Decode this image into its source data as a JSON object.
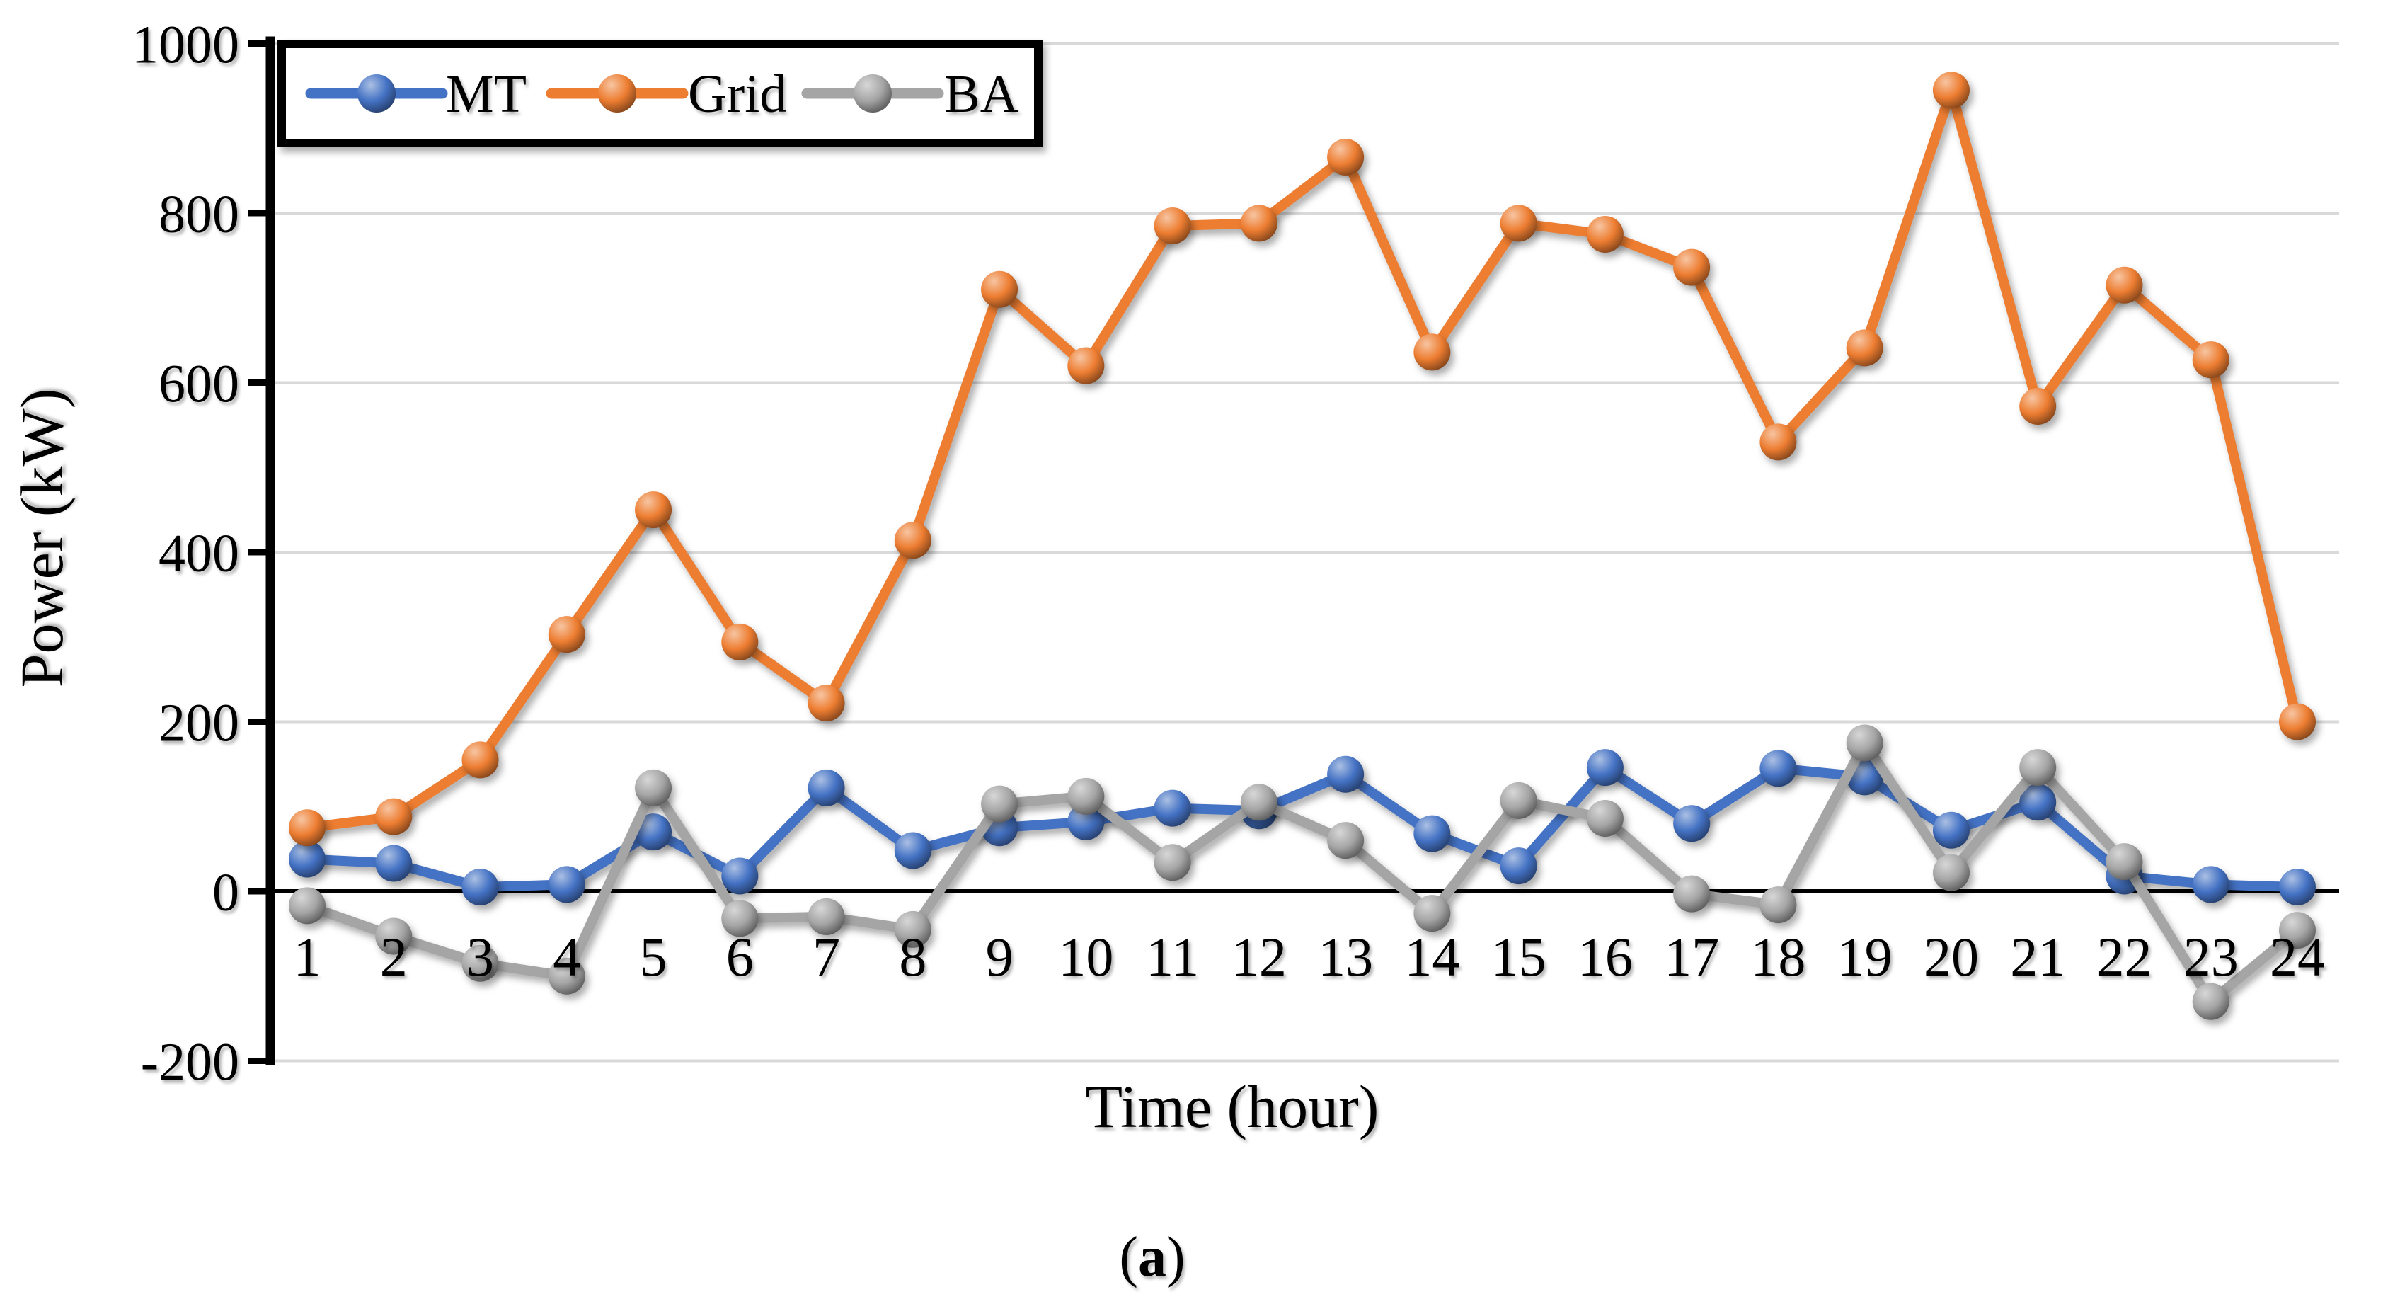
{
  "figure": {
    "caption": "(a)",
    "background": "#ffffff"
  },
  "chart_data": {
    "type": "line",
    "title": "",
    "xlabel": "Time (hour)",
    "ylabel": "Power (kW)",
    "x": [
      1,
      2,
      3,
      4,
      5,
      6,
      7,
      8,
      9,
      10,
      11,
      12,
      13,
      14,
      15,
      16,
      17,
      18,
      19,
      20,
      21,
      22,
      23,
      24
    ],
    "yticks": [
      1000,
      800,
      600,
      400,
      200,
      0,
      -200
    ],
    "ylim": [
      -200,
      1000
    ],
    "xlim": [
      1,
      24
    ],
    "grid": true,
    "legend_position": "top-left",
    "series": [
      {
        "name": "MT",
        "color": "#4472C4",
        "marker": "sphere",
        "values": [
          38,
          33,
          5,
          8,
          70,
          18,
          122,
          48,
          75,
          82,
          98,
          95,
          138,
          68,
          30,
          146,
          80,
          145,
          135,
          72,
          105,
          18,
          8,
          5
        ]
      },
      {
        "name": "Grid",
        "color": "#ED7D31",
        "marker": "sphere",
        "values": [
          75,
          88,
          155,
          303,
          450,
          294,
          222,
          414,
          710,
          620,
          785,
          788,
          866,
          636,
          788,
          775,
          736,
          530,
          641,
          945,
          572,
          715,
          627,
          200
        ]
      },
      {
        "name": "BA",
        "color": "#A5A5A5",
        "marker": "sphere",
        "values": [
          -17,
          -53,
          -85,
          -100,
          122,
          -32,
          -30,
          -45,
          103,
          112,
          34,
          105,
          60,
          -26,
          107,
          86,
          -3,
          -16,
          175,
          22,
          146,
          35,
          -130,
          -46
        ]
      }
    ]
  },
  "colors": {
    "gridline": "#D9D9D9",
    "zero_line": "#000000",
    "axis": "#000000",
    "text": "#000000",
    "legend_border": "#000000",
    "legend_fill": "#ffffff"
  }
}
